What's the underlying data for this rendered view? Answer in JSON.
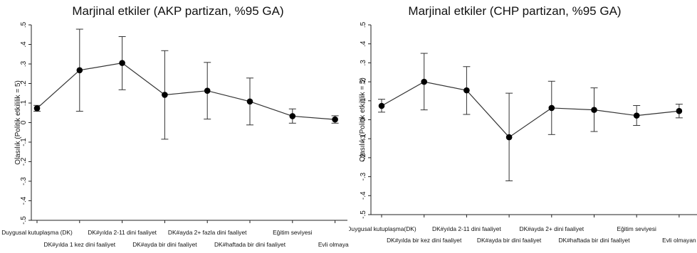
{
  "chart_data": [
    {
      "type": "line",
      "title": "Marjinal etkiler (AKP partizan, %95 GA)",
      "xlabel": "",
      "ylabel": "Olasılık (Politik etkililik = 5)",
      "ylim": [
        -0.5,
        0.5
      ],
      "yticks": [
        ".5",
        ".4",
        ".3",
        ".2",
        ".1",
        "0",
        "-.1",
        "-.2",
        "-.3",
        "-.4",
        "-.5"
      ],
      "categories": [
        "Duygusal kutuplaşma (DK)",
        "DK#yılda 1 kez dini faaliyet",
        "DK#yılda 2-11 dini faaliyet",
        "DK#ayda bir dini faaliyet",
        "DK#ayda 2+ fazla dini faaliyet",
        "DK#haftada bir dini faaliyet",
        "Eğitim seviyesi",
        "Evli olmayan"
      ],
      "values": [
        0.073,
        0.268,
        0.305,
        0.142,
        0.163,
        0.108,
        0.033,
        0.016
      ],
      "ci_low": [
        0.058,
        0.058,
        0.168,
        -0.085,
        0.018,
        -0.012,
        -0.003,
        -0.003
      ],
      "ci_high": [
        0.088,
        0.478,
        0.44,
        0.368,
        0.308,
        0.228,
        0.07,
        0.035
      ],
      "grid": false,
      "legend": "none"
    },
    {
      "type": "line",
      "title": "Marjinal etkiler (CHP partizan, %95 GA)",
      "xlabel": "",
      "ylabel": "Olasılık (Politik etkililik = 5)",
      "ylim": [
        -0.5,
        0.5
      ],
      "yticks": [
        ".5",
        ".4",
        ".3",
        ".2",
        ".1",
        "0",
        "-.1",
        "-.2",
        "-.3",
        "-.4",
        "-.5"
      ],
      "categories": [
        "Duygusal kutuplaşma(DK)",
        "DK#yılda bir kez dini faaliyet",
        "DK#yılda 2-11 dini faaliyet",
        "DK#ayda bir dini faaliyet",
        "DK#ayda 2+ dini faaliyet",
        "DK#haftada bir dini faaliyet",
        "Eğitim seviyesi",
        "Evli olmayan"
      ],
      "values": [
        0.073,
        0.2,
        0.155,
        -0.092,
        0.062,
        0.052,
        0.022,
        0.046
      ],
      "ci_low": [
        0.04,
        0.052,
        0.028,
        -0.322,
        -0.078,
        -0.062,
        -0.03,
        0.01
      ],
      "ci_high": [
        0.108,
        0.35,
        0.28,
        0.14,
        0.203,
        0.168,
        0.075,
        0.082
      ],
      "grid": false,
      "legend": "none"
    }
  ]
}
